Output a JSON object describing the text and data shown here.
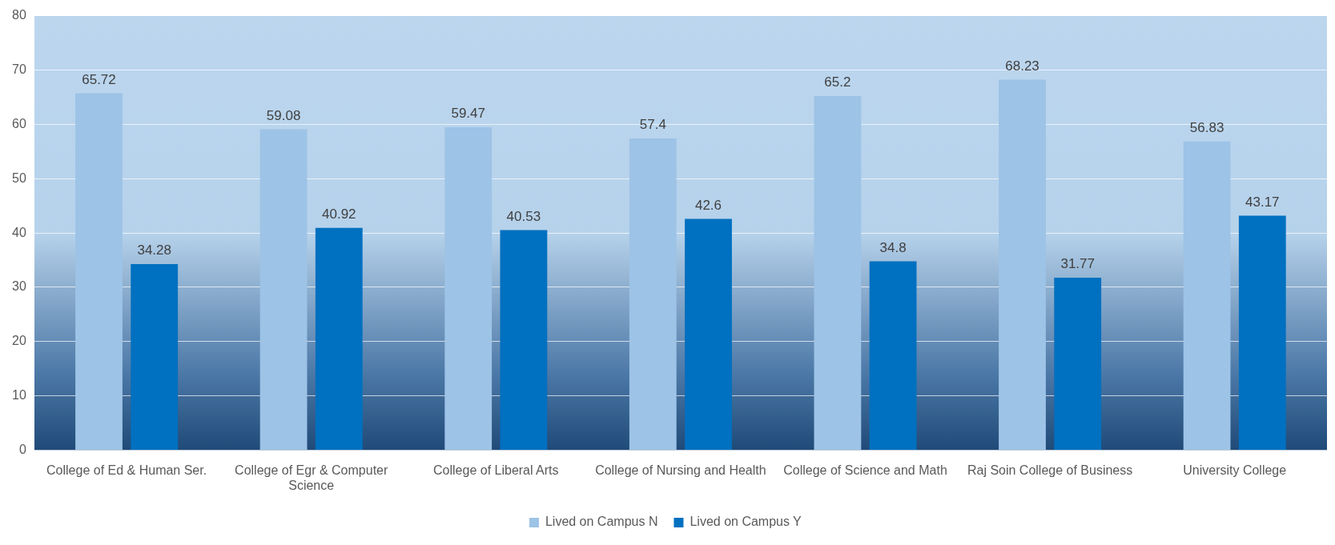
{
  "chart_data": {
    "type": "bar",
    "categories": [
      "College of Ed & Human Ser.",
      "College of Egr & Computer Science",
      "College of Liberal Arts",
      "College of Nursing and Health",
      "College of Science and Math",
      "Raj Soin College of Business",
      "University College"
    ],
    "series": [
      {
        "name": "Lived on Campus N",
        "color": "#9dc3e6",
        "values": [
          65.72,
          59.08,
          59.47,
          57.4,
          65.2,
          68.23,
          56.83
        ]
      },
      {
        "name": "Lived on Campus Y",
        "color": "#0070c0",
        "values": [
          34.28,
          40.92,
          40.53,
          42.6,
          34.8,
          31.77,
          43.17
        ]
      }
    ],
    "ylim": [
      0,
      80
    ],
    "yticks": [
      0,
      10,
      20,
      30,
      40,
      50,
      60,
      70,
      80
    ],
    "grid": "y",
    "legend": "bottom",
    "data_labels": true
  }
}
